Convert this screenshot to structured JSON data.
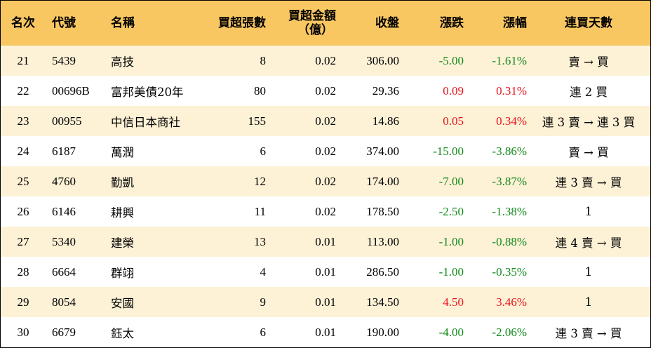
{
  "headers": {
    "rank": "名次",
    "code": "代號",
    "name": "名稱",
    "net_buy_lots": "買超張數",
    "net_buy_amount": "買超金額",
    "net_buy_amount_unit": "（億）",
    "close": "收盤",
    "change": "漲跌",
    "change_pct": "漲幅",
    "streak": "連買天數"
  },
  "colors": {
    "header_bg": "#f9c762",
    "stripe_bg": "#fdf1d6",
    "up": "#e8151d",
    "down": "#128a1b"
  },
  "rows": [
    {
      "rank": "21",
      "code": "5439",
      "name": "高技",
      "lots": "8",
      "amount": "0.02",
      "close": "306.00",
      "change": "-5.00",
      "pct": "-1.61%",
      "dir": "down",
      "streak": "賣 → 買"
    },
    {
      "rank": "22",
      "code": "00696B",
      "name": "富邦美債20年",
      "lots": "80",
      "amount": "0.02",
      "close": "29.36",
      "change": "0.09",
      "pct": "0.31%",
      "dir": "up",
      "streak": "連 2 買"
    },
    {
      "rank": "23",
      "code": "00955",
      "name": "中信日本商社",
      "lots": "155",
      "amount": "0.02",
      "close": "14.86",
      "change": "0.05",
      "pct": "0.34%",
      "dir": "up",
      "streak": "連 3 賣 → 連 3 買"
    },
    {
      "rank": "24",
      "code": "6187",
      "name": "萬潤",
      "lots": "6",
      "amount": "0.02",
      "close": "374.00",
      "change": "-15.00",
      "pct": "-3.86%",
      "dir": "down",
      "streak": "賣 → 買"
    },
    {
      "rank": "25",
      "code": "4760",
      "name": "勤凱",
      "lots": "12",
      "amount": "0.02",
      "close": "174.00",
      "change": "-7.00",
      "pct": "-3.87%",
      "dir": "down",
      "streak": "連 3 賣 → 買"
    },
    {
      "rank": "26",
      "code": "6146",
      "name": "耕興",
      "lots": "11",
      "amount": "0.02",
      "close": "178.50",
      "change": "-2.50",
      "pct": "-1.38%",
      "dir": "down",
      "streak": "1"
    },
    {
      "rank": "27",
      "code": "5340",
      "name": "建榮",
      "lots": "13",
      "amount": "0.01",
      "close": "113.00",
      "change": "-1.00",
      "pct": "-0.88%",
      "dir": "down",
      "streak": "連 4 賣 → 買"
    },
    {
      "rank": "28",
      "code": "6664",
      "name": "群翊",
      "lots": "4",
      "amount": "0.01",
      "close": "286.50",
      "change": "-1.00",
      "pct": "-0.35%",
      "dir": "down",
      "streak": "1"
    },
    {
      "rank": "29",
      "code": "8054",
      "name": "安國",
      "lots": "9",
      "amount": "0.01",
      "close": "134.50",
      "change": "4.50",
      "pct": "3.46%",
      "dir": "up",
      "streak": "1"
    },
    {
      "rank": "30",
      "code": "6679",
      "name": "鈺太",
      "lots": "6",
      "amount": "0.01",
      "close": "190.00",
      "change": "-4.00",
      "pct": "-2.06%",
      "dir": "down",
      "streak": "連 3 賣 → 買"
    }
  ]
}
